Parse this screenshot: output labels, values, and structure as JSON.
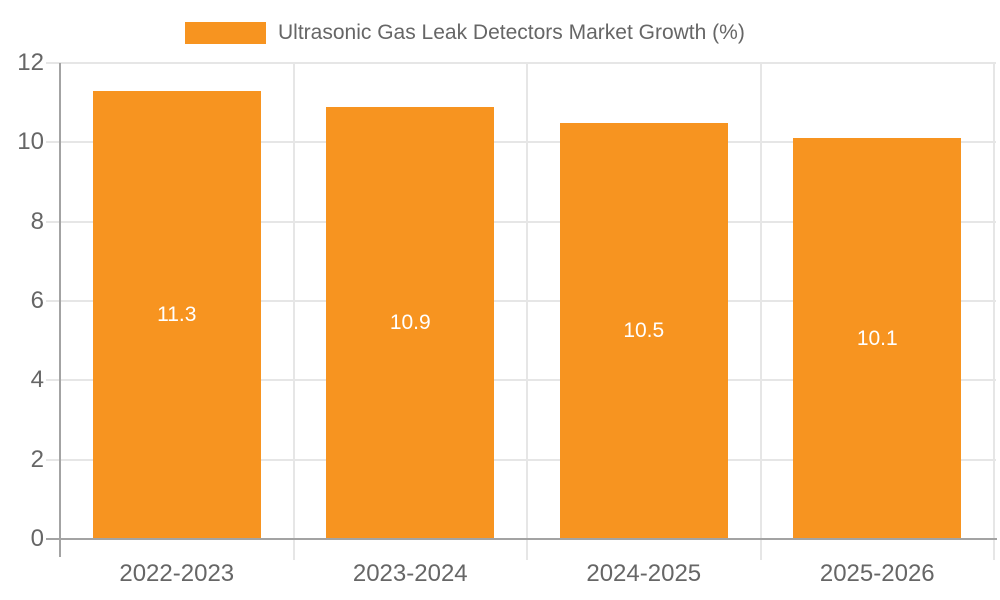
{
  "page": {
    "background": "#ffffff"
  },
  "legend": {
    "position": "top"
  },
  "chart_data": {
    "type": "bar",
    "title": "Ultrasonic Gas Leak Detectors Market Growth (%)",
    "categories": [
      "2022-2023",
      "2023-2024",
      "2024-2025",
      "2025-2026"
    ],
    "values": [
      11.3,
      10.9,
      10.5,
      10.1
    ],
    "bar_labels": [
      "11.3",
      "10.9",
      "10.5",
      "10.1"
    ],
    "xlabel": "",
    "ylabel": "",
    "ylim": [
      0,
      12
    ],
    "yticks": [
      0,
      2,
      4,
      6,
      8,
      10,
      12
    ],
    "grid": true,
    "legend_position": "top",
    "colors": {
      "bar": "#F79420",
      "bar_label": "#ffffff",
      "axis_text": "#666666",
      "grid_line": "#e6e6e6",
      "axis_line": "#a3a3a3"
    }
  }
}
